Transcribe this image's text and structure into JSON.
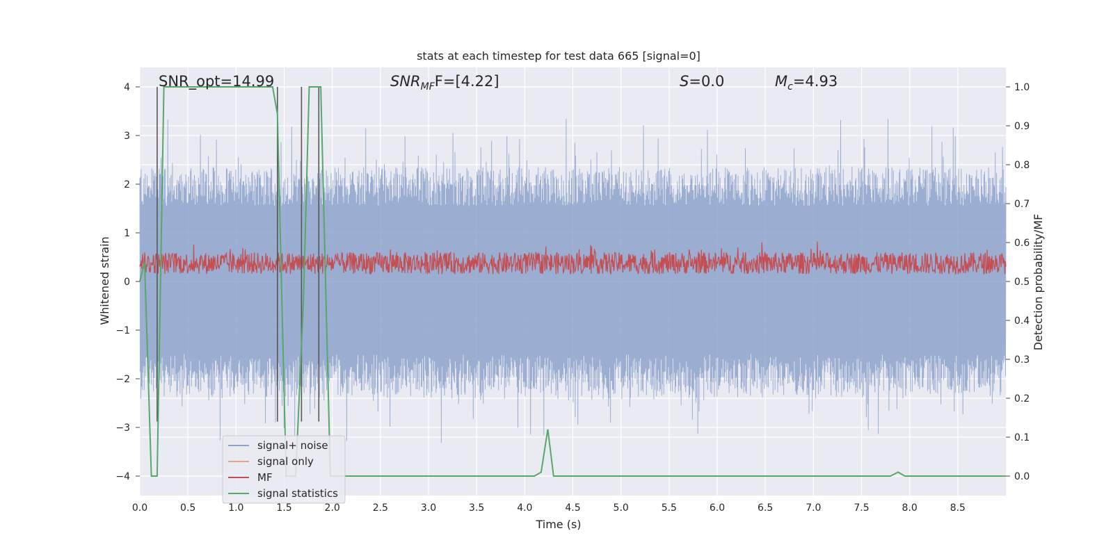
{
  "chart_data": {
    "type": "line",
    "title": "stats at each timestep for test data 665 [signal=0]",
    "xlabel": "Time (s)",
    "ylabel_left": "Whitened strain",
    "ylabel_right": "Detection probability/MF",
    "xlim": [
      0.0,
      9.0
    ],
    "ylim_left": [
      -4.4,
      4.4
    ],
    "ylim_right": [
      -0.05,
      1.05
    ],
    "grid": true,
    "legend_placement": "lower left",
    "x_ticks": [
      "0.0",
      "0.5",
      "1.0",
      "1.5",
      "2.0",
      "2.5",
      "3.0",
      "3.5",
      "4.0",
      "4.5",
      "5.0",
      "5.5",
      "6.0",
      "6.5",
      "7.0",
      "7.5",
      "8.0",
      "8.5"
    ],
    "y_left_ticks": [
      "4",
      "3",
      "2",
      "1",
      "0",
      "−1",
      "−2",
      "−3",
      "−4"
    ],
    "y_right_ticks": [
      "1.0",
      "0.9",
      "0.8",
      "0.7",
      "0.6",
      "0.5",
      "0.4",
      "0.3",
      "0.2",
      "0.1",
      "0.0"
    ],
    "annotations": {
      "snr_opt": "SNR_opt=14.99",
      "snr_mf_name": "SNR",
      "snr_mf_sub": "MF",
      "snr_mf_value": "F=[4.22]",
      "s_name": "S",
      "s_value": "=0.0",
      "mc_name": "M",
      "mc_sub": "c",
      "mc_value": "=4.93"
    },
    "series": [
      {
        "name": "signal+ noise",
        "color": "#8da3cc",
        "axis": "left",
        "description_values": {
          "typical_range": [
            -2.0,
            2.3
          ],
          "peaks": [
            3.5,
            -3.7
          ]
        }
      },
      {
        "name": "signal only",
        "color": "#e8a287",
        "axis": "left",
        "values": []
      },
      {
        "name": "MF",
        "color": "#c44e52",
        "axis": "left",
        "description_values": {
          "typical_range": [
            0.0,
            0.7
          ],
          "max": 1.0
        }
      },
      {
        "name": "signal statistics",
        "color": "#55a868",
        "axis": "right",
        "x": [
          0.0,
          0.05,
          0.12,
          0.18,
          0.25,
          0.35,
          1.38,
          1.43,
          1.52,
          1.62,
          1.7,
          1.76,
          1.88,
          1.98,
          2.8,
          4.1,
          4.17,
          4.24,
          4.3,
          7.8,
          7.88,
          7.95,
          9.0
        ],
        "y": [
          0.5,
          0.55,
          0.0,
          0.0,
          1.0,
          1.0,
          1.0,
          0.93,
          0.0,
          0.0,
          0.45,
          1.0,
          1.0,
          0.0,
          0.0,
          0.0,
          0.01,
          0.12,
          0.0,
          0.0,
          0.01,
          0.0,
          0.0
        ]
      },
      {
        "name": "detection markers",
        "color": "#555555",
        "axis": "right",
        "x": [
          0.18,
          1.43,
          1.68,
          1.86
        ]
      }
    ]
  },
  "colors": {
    "background": "#eaeaf2",
    "grid": "#ffffff"
  }
}
